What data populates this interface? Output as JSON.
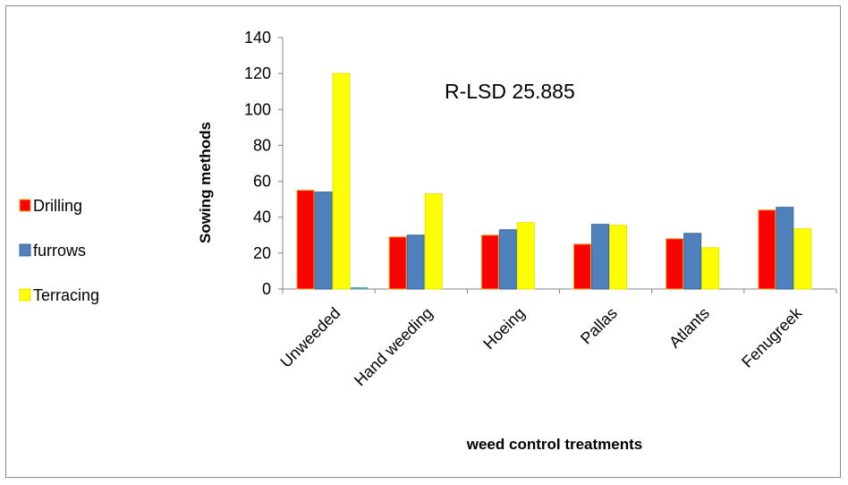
{
  "chart_data": {
    "type": "bar",
    "categories": [
      "Unweeded",
      "Hand weeding",
      "Hoeing",
      "Pallas",
      "Atlants",
      "Fenugreek"
    ],
    "series": [
      {
        "name": "Drilling",
        "values": [
          55,
          29,
          30,
          25,
          28,
          44
        ],
        "color": "#FF0000",
        "stroke": "#F5A623"
      },
      {
        "name": "furrows",
        "values": [
          54,
          30,
          33,
          36,
          31,
          45.5
        ],
        "color": "#4F81BD",
        "stroke": "#3A6699"
      },
      {
        "name": "Terracing",
        "values": [
          120,
          53,
          37,
          35.5,
          23,
          33.5
        ],
        "color": "#FFFF00",
        "stroke": "#E6E600"
      }
    ],
    "extra_bar": {
      "category_index": 0,
      "value": 1,
      "color": "#4BACC6"
    },
    "ylim": [
      0,
      140
    ],
    "yticks": [
      0,
      20,
      40,
      60,
      80,
      100,
      120,
      140
    ],
    "ylabel": "Sowing methods",
    "xlabel": "weed control treatments",
    "annotation": "R-LSD 25.885",
    "grid": false,
    "legend": "left"
  }
}
